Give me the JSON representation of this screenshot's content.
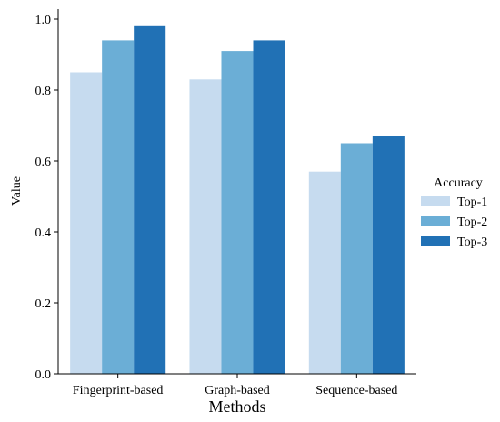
{
  "chart_data": {
    "type": "bar",
    "categories": [
      "Fingerprint-based",
      "Graph-based",
      "Sequence-based"
    ],
    "series": [
      {
        "name": "Top-1",
        "values": [
          0.85,
          0.83,
          0.57
        ],
        "color": "#c6dbef"
      },
      {
        "name": "Top-2",
        "values": [
          0.94,
          0.91,
          0.65
        ],
        "color": "#6baed6"
      },
      {
        "name": "Top-3",
        "values": [
          0.98,
          0.94,
          0.67
        ],
        "color": "#2171b5"
      }
    ],
    "xlabel": "Methods",
    "ylabel": "Value",
    "ylim": [
      0,
      1.0
    ],
    "yticks": [
      "0.0",
      "0.2",
      "0.4",
      "0.6",
      "0.8",
      "1.0"
    ],
    "legend": {
      "title": "Accuracy",
      "position": "right"
    },
    "grid": false
  }
}
